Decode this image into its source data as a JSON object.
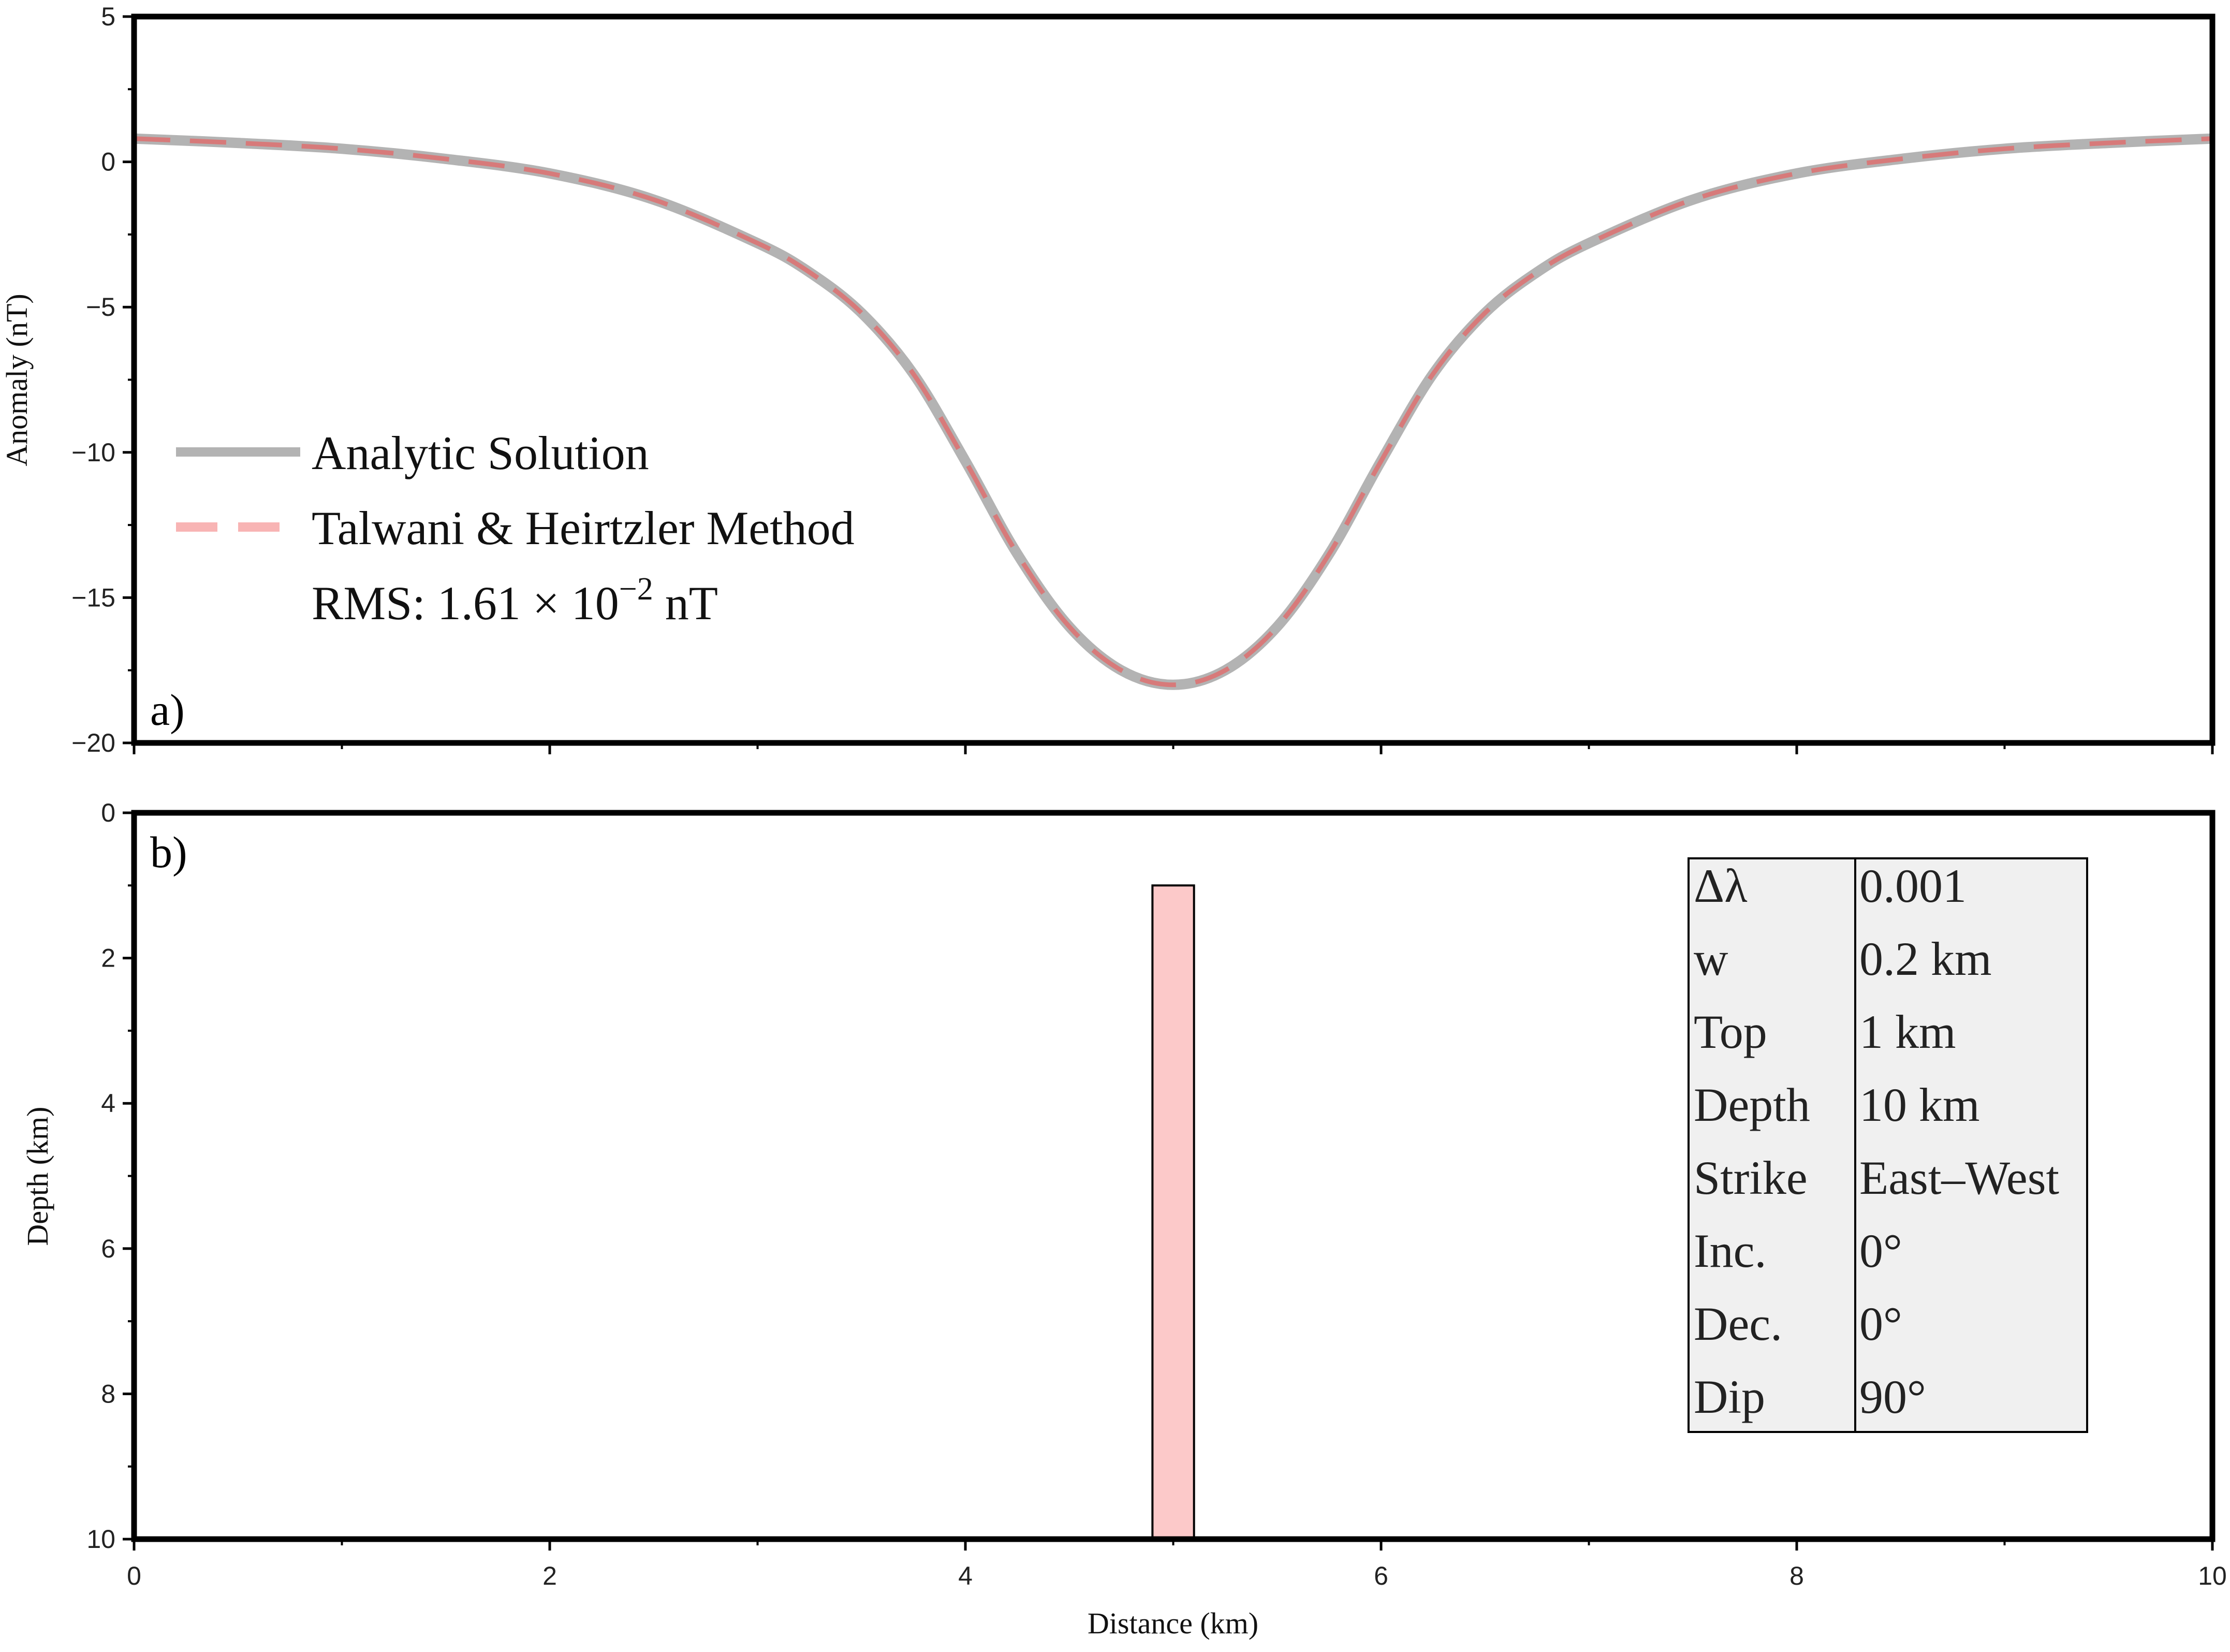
{
  "chart_data": [
    {
      "panel": "a)",
      "type": "line",
      "xlim": [
        0,
        10
      ],
      "ylim": [
        -20,
        5
      ],
      "ylabel": "Anomaly (nT)",
      "y_ticks": [
        5,
        0,
        -5,
        -10,
        -15,
        -20
      ],
      "y_tick_labels": [
        "5",
        "0",
        "−5",
        "−10",
        "−15",
        "−20"
      ],
      "x": [
        0,
        0.5,
        1,
        1.5,
        2,
        2.5,
        3,
        3.25,
        3.5,
        3.75,
        4,
        4.25,
        4.5,
        4.75,
        5,
        5.25,
        5.5,
        5.75,
        6,
        6.25,
        6.5,
        6.75,
        7,
        7.5,
        8,
        8.5,
        9,
        9.5,
        10
      ],
      "series": [
        {
          "name": "Analytic Solution",
          "color": "#b3b3b3",
          "values": [
            0.8,
            0.65,
            0.45,
            0.1,
            -0.4,
            -1.3,
            -2.8,
            -3.8,
            -5.2,
            -7.3,
            -10.3,
            -13.5,
            -16.0,
            -17.5,
            -18.0,
            -17.5,
            -16.0,
            -13.5,
            -10.3,
            -7.3,
            -5.2,
            -3.8,
            -2.8,
            -1.3,
            -0.4,
            0.1,
            0.45,
            0.65,
            0.8
          ]
        },
        {
          "name": "Talwani & Heirtzler Method",
          "color": "#f4a6a6",
          "values": [
            0.8,
            0.65,
            0.45,
            0.1,
            -0.4,
            -1.3,
            -2.8,
            -3.8,
            -5.2,
            -7.3,
            -10.3,
            -13.5,
            -16.0,
            -17.5,
            -18.0,
            -17.5,
            -16.0,
            -13.5,
            -10.3,
            -7.3,
            -5.2,
            -3.8,
            -2.8,
            -1.3,
            -0.4,
            0.1,
            0.45,
            0.65,
            0.8
          ]
        }
      ],
      "rms": {
        "prefix": "RMS: 1.61 × 10",
        "exponent": "−2",
        "suffix": " nT"
      },
      "legend": "left"
    },
    {
      "panel": "b)",
      "type": "bar",
      "xlim": [
        0,
        10
      ],
      "ylim": [
        10,
        0
      ],
      "xlabel": "Distance (km)",
      "ylabel": "Depth (km)",
      "x_ticks": [
        0,
        2,
        4,
        6,
        8,
        10
      ],
      "x_tick_labels": [
        "0",
        "2",
        "4",
        "6",
        "8",
        "10"
      ],
      "y_ticks": [
        0,
        2,
        4,
        6,
        8,
        10
      ],
      "y_tick_labels": [
        "0",
        "2",
        "4",
        "6",
        "8",
        "10"
      ],
      "body": {
        "x_center": 5,
        "width": 0.2,
        "top": 1,
        "bottom": 10,
        "fill": "#fcc9c9"
      },
      "parameters": [
        {
          "label": "Δλ",
          "value": "0.001"
        },
        {
          "label": "w",
          "value": "0.2 km"
        },
        {
          "label": "Top",
          "value": "1 km"
        },
        {
          "label": "Depth",
          "value": "10 km"
        },
        {
          "label": "Strike",
          "value": "East–West"
        },
        {
          "label": "Inc.",
          "value": "0°"
        },
        {
          "label": "Dec.",
          "value": "0°"
        },
        {
          "label": "Dip",
          "value": "90°"
        }
      ]
    }
  ]
}
